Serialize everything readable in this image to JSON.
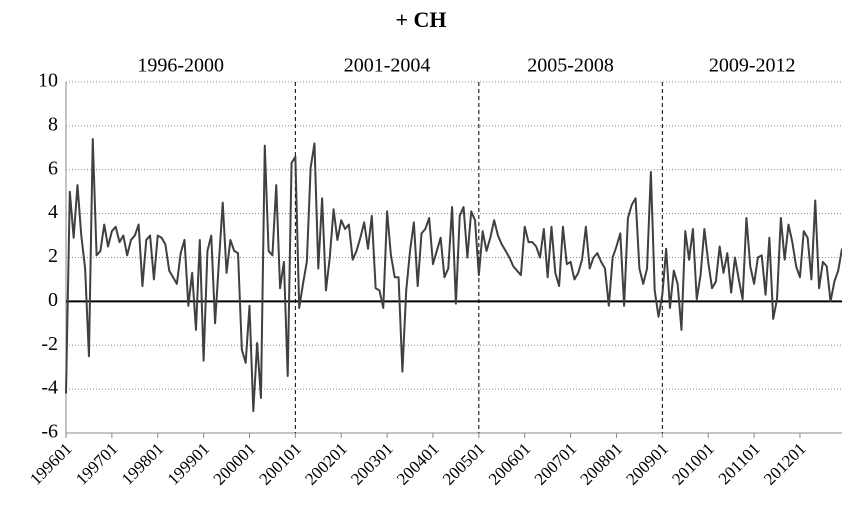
{
  "chart_data": {
    "type": "line",
    "title": "+ CH",
    "periods": [
      "1996-2000",
      "2001-2004",
      "2005-2008",
      "2009-2012"
    ],
    "period_starts": [
      "200101",
      "200501",
      "200901"
    ],
    "categories": [
      "199601",
      null,
      null,
      null,
      null,
      null,
      null,
      null,
      null,
      null,
      null,
      null,
      "199701",
      null,
      null,
      null,
      null,
      null,
      null,
      null,
      null,
      null,
      null,
      null,
      "199801",
      null,
      null,
      null,
      null,
      null,
      null,
      null,
      null,
      null,
      null,
      null,
      "199901",
      null,
      null,
      null,
      null,
      null,
      null,
      null,
      null,
      null,
      null,
      null,
      "200001",
      null,
      null,
      null,
      null,
      null,
      null,
      null,
      null,
      null,
      null,
      null,
      "200101",
      null,
      null,
      null,
      null,
      null,
      null,
      null,
      null,
      null,
      null,
      null,
      "200201",
      null,
      null,
      null,
      null,
      null,
      null,
      null,
      null,
      null,
      null,
      null,
      "200301",
      null,
      null,
      null,
      null,
      null,
      null,
      null,
      null,
      null,
      null,
      null,
      "200401",
      null,
      null,
      null,
      null,
      null,
      null,
      null,
      null,
      null,
      null,
      null,
      "200501",
      null,
      null,
      null,
      null,
      null,
      null,
      null,
      null,
      null,
      null,
      null,
      "200601",
      null,
      null,
      null,
      null,
      null,
      null,
      null,
      null,
      null,
      null,
      null,
      "200701",
      null,
      null,
      null,
      null,
      null,
      null,
      null,
      null,
      null,
      null,
      null,
      "200801",
      null,
      null,
      null,
      null,
      null,
      null,
      null,
      null,
      null,
      null,
      null,
      "200901",
      null,
      null,
      null,
      null,
      null,
      null,
      null,
      null,
      null,
      null,
      null,
      "201001",
      null,
      null,
      null,
      null,
      null,
      null,
      null,
      null,
      null,
      null,
      null,
      "201101",
      null,
      null,
      null,
      null,
      null,
      null,
      null,
      null,
      null,
      null,
      null,
      "201201",
      null,
      null,
      null,
      null,
      null,
      null,
      null,
      null,
      null,
      null,
      null
    ],
    "values": [
      -4.2,
      5.0,
      2.9,
      5.3,
      3.0,
      1.5,
      -2.5,
      7.4,
      2.1,
      2.3,
      3.5,
      2.5,
      3.2,
      3.4,
      2.7,
      3.0,
      2.1,
      2.8,
      3.0,
      3.5,
      0.7,
      2.8,
      3.0,
      1.0,
      3.0,
      2.9,
      2.6,
      1.4,
      1.1,
      0.8,
      2.2,
      2.8,
      -0.2,
      1.3,
      -1.3,
      2.8,
      -2.7,
      2.3,
      3.0,
      -1.0,
      1.8,
      4.5,
      1.3,
      2.8,
      2.3,
      2.2,
      -2.2,
      -2.8,
      -0.2,
      -5.0,
      -1.9,
      -4.4,
      7.1,
      2.3,
      2.1,
      5.3,
      0.6,
      1.8,
      -3.4,
      6.3,
      6.6,
      -0.3,
      0.8,
      1.8,
      6.1,
      7.2,
      1.5,
      4.7,
      0.5,
      2.0,
      4.2,
      2.8,
      3.7,
      3.3,
      3.5,
      1.9,
      2.3,
      2.9,
      3.6,
      2.4,
      3.9,
      0.6,
      0.5,
      -0.3,
      4.1,
      2.1,
      1.1,
      1.1,
      -3.2,
      0.5,
      2.3,
      3.6,
      0.7,
      3.1,
      3.3,
      3.8,
      1.7,
      2.3,
      2.9,
      1.1,
      1.5,
      4.3,
      -0.1,
      3.9,
      4.3,
      2.0,
      4.1,
      3.7,
      1.2,
      3.2,
      2.3,
      2.9,
      3.7,
      3.0,
      2.6,
      2.3,
      2.0,
      1.6,
      1.4,
      1.2,
      3.4,
      2.7,
      2.7,
      2.5,
      2.0,
      3.3,
      1.1,
      3.4,
      1.3,
      0.7,
      3.4,
      1.7,
      1.8,
      1.0,
      1.3,
      1.9,
      3.4,
      1.5,
      2.0,
      2.2,
      1.8,
      1.5,
      -0.2,
      2.0,
      2.5,
      3.1,
      -0.2,
      3.8,
      4.4,
      4.7,
      1.5,
      0.8,
      1.5,
      5.9,
      0.5,
      -0.7,
      0.3,
      2.4,
      -0.3,
      1.4,
      0.8,
      -1.3,
      3.2,
      1.9,
      3.3,
      0.1,
      1.2,
      3.3,
      1.8,
      0.6,
      0.9,
      2.5,
      1.3,
      2.2,
      0.4,
      2.0,
      1.0,
      0.1,
      3.8,
      1.6,
      0.8,
      2.0,
      2.1,
      0.3,
      2.9,
      -0.8,
      0.1,
      3.8,
      1.9,
      3.5,
      2.7,
      1.6,
      1.1,
      3.2,
      2.9,
      1.0,
      4.6,
      0.6,
      1.8,
      1.6,
      0.0,
      0.9,
      1.4,
      2.4
    ],
    "color": "#404040",
    "ylim": [
      -6,
      10
    ],
    "yticks": [
      -6,
      -4,
      -2,
      0,
      2,
      4,
      6,
      8,
      10
    ],
    "grid": true
  }
}
